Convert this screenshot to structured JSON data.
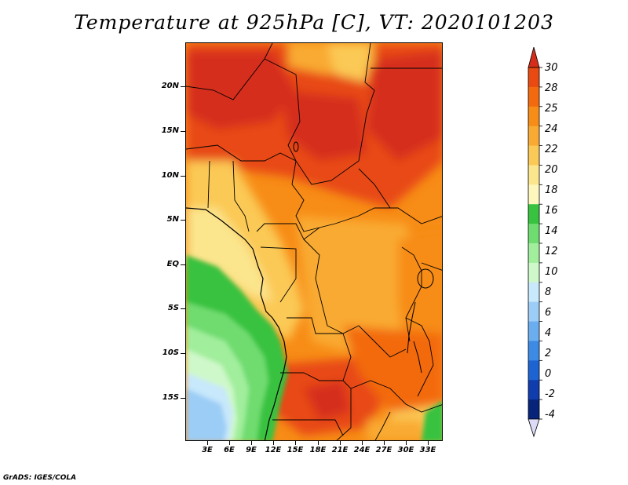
{
  "title": "Temperature at 925hPa [C], VT: 2020101203",
  "footer": "GrADS: IGES/COLA",
  "map": {
    "region": "Central Africa",
    "variable": "Temperature at 925hPa",
    "units": "C",
    "lat_labels": [
      "20N",
      "15N",
      "10N",
      "5N",
      "EQ",
      "5S",
      "10S",
      "15S"
    ],
    "lon_labels": [
      "3E",
      "6E",
      "9E",
      "12E",
      "15E",
      "18E",
      "21E",
      "24E",
      "27E",
      "30E",
      "33E"
    ]
  },
  "colorbar": {
    "labels": [
      "30",
      "28",
      "25",
      "24",
      "22",
      "20",
      "18",
      "16",
      "14",
      "12",
      "10",
      "8",
      "6",
      "4",
      "2",
      "0",
      "-2",
      "-4"
    ],
    "colors": [
      "#d62d1a",
      "#e84a12",
      "#f36a0e",
      "#f78c16",
      "#f9aa32",
      "#fbc955",
      "#fbe58d",
      "#fdf7bd",
      "#37c23f",
      "#6fdc6f",
      "#a1ee9c",
      "#cff8ca",
      "#c8e8fb",
      "#9ccdf6",
      "#6aaef0",
      "#3d8ae5",
      "#1d63d2",
      "#0f3dad",
      "#08237a",
      "#1a0a55"
    ],
    "over_color": "#d62d1a",
    "under_color": "#dcdcf8"
  }
}
